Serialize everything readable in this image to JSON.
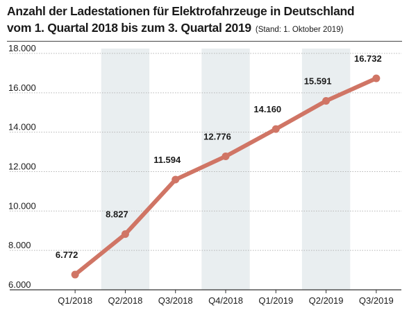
{
  "header": {
    "title_line1": "Anzahl der Ladestationen für Elektrofahrzeuge in Deutschland",
    "title_line2": "vom 1. Quartal 2018 bis zum 3. Quartal 2019",
    "subtitle": "(Stand: 1. Oktober 2019)"
  },
  "colors": {
    "line": "#d07565",
    "band": "#e9eef0",
    "grid": "#b5b5b5",
    "axis": "#333333"
  },
  "chart_data": {
    "type": "line",
    "categories": [
      "Q1/2018",
      "Q2/2018",
      "Q3/2018",
      "Q4/2018",
      "Q1/2019",
      "Q2/2019",
      "Q3/2019"
    ],
    "series": [
      {
        "values": [
          6772,
          8827,
          11594,
          12776,
          14160,
          15591,
          16732
        ],
        "labels": [
          "6.772",
          "8.827",
          "11.594",
          "12.776",
          "14.160",
          "15.591",
          "16.732"
        ]
      }
    ],
    "ylim": [
      6000,
      18000
    ],
    "yticks": [
      6000,
      8000,
      10000,
      12000,
      14000,
      16000,
      18000
    ],
    "ytick_labels": [
      "6.000",
      "8.000",
      "10.000",
      "12.000",
      "14.000",
      "16.000",
      "18.000"
    ],
    "shaded_categories": [
      "Q2/2018",
      "Q4/2018",
      "Q2/2019"
    ],
    "grid": true,
    "xlabel": "",
    "ylabel": ""
  }
}
